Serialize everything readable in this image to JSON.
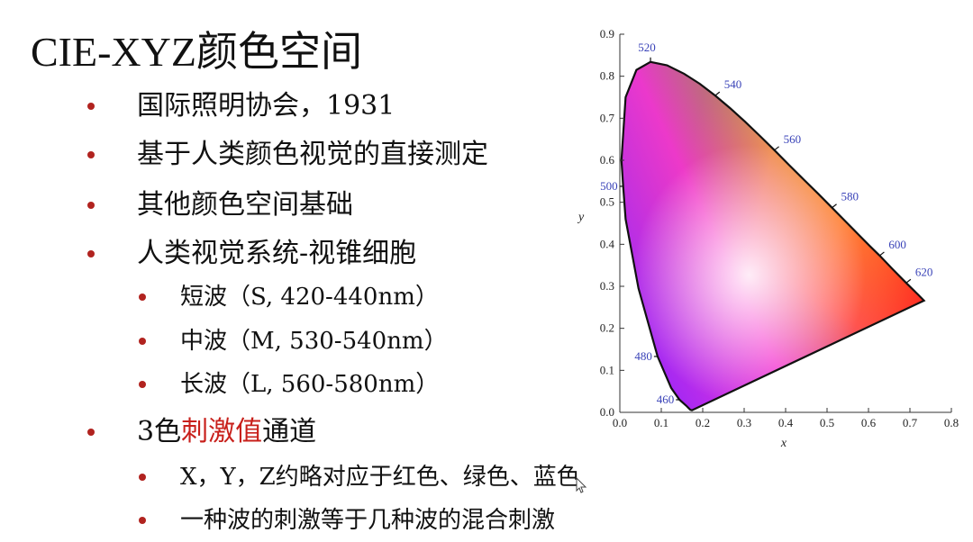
{
  "slide": {
    "title": "CIE-XYZ颜色空间",
    "bullets": [
      {
        "text": "国际照明协会，1931"
      },
      {
        "text": "基于人类颜色视觉的直接测定"
      },
      {
        "text": "其他颜色空间基础"
      },
      {
        "text": "人类视觉系统-视锥细胞"
      },
      {
        "text": "短波（S, 420-440nm）",
        "level": 2
      },
      {
        "text": "中波（M, 530-540nm）",
        "level": 2
      },
      {
        "text": "长波（L, 560-580nm）",
        "level": 2
      },
      {
        "prefix": "3色",
        "highlight": "刺激值",
        "suffix": "通道"
      },
      {
        "text": "X，Y，Z约略对应于红色、绿色、蓝色",
        "level": 2
      },
      {
        "text": "一种波的刺激等于几种波的混合刺激",
        "level": 2
      }
    ]
  },
  "chart_data": {
    "type": "scatter",
    "title": "",
    "xlabel": "x",
    "ylabel": "y",
    "xlim": [
      0.0,
      0.8
    ],
    "ylim": [
      0.0,
      0.9
    ],
    "xticks": [
      "0.0",
      "0.1",
      "0.2",
      "0.3",
      "0.4",
      "0.5",
      "0.6",
      "0.7",
      "0.8"
    ],
    "yticks": [
      "0.0",
      "0.1",
      "0.2",
      "0.3",
      "0.4",
      "0.5",
      "0.6",
      "0.7",
      "0.8",
      "0.9"
    ],
    "grid": false,
    "wavelength_labels": [
      {
        "label": "460",
        "x": 0.144,
        "y": 0.03
      },
      {
        "label": "480",
        "x": 0.091,
        "y": 0.133
      },
      {
        "label": "500",
        "x": 0.008,
        "y": 0.538
      },
      {
        "label": "520",
        "x": 0.074,
        "y": 0.834
      },
      {
        "label": "540",
        "x": 0.23,
        "y": 0.754
      },
      {
        "label": "560",
        "x": 0.373,
        "y": 0.624
      },
      {
        "label": "580",
        "x": 0.512,
        "y": 0.487
      },
      {
        "label": "600",
        "x": 0.627,
        "y": 0.373
      },
      {
        "label": "620",
        "x": 0.691,
        "y": 0.308
      }
    ],
    "locus": [
      [
        0.174,
        0.005
      ],
      [
        0.17,
        0.006
      ],
      [
        0.16,
        0.016
      ],
      [
        0.144,
        0.03
      ],
      [
        0.124,
        0.058
      ],
      [
        0.091,
        0.133
      ],
      [
        0.045,
        0.295
      ],
      [
        0.014,
        0.46
      ],
      [
        0.008,
        0.538
      ],
      [
        0.004,
        0.6
      ],
      [
        0.014,
        0.75
      ],
      [
        0.04,
        0.815
      ],
      [
        0.074,
        0.834
      ],
      [
        0.114,
        0.826
      ],
      [
        0.155,
        0.806
      ],
      [
        0.193,
        0.782
      ],
      [
        0.23,
        0.754
      ],
      [
        0.266,
        0.724
      ],
      [
        0.302,
        0.692
      ],
      [
        0.337,
        0.659
      ],
      [
        0.373,
        0.624
      ],
      [
        0.408,
        0.589
      ],
      [
        0.444,
        0.554
      ],
      [
        0.479,
        0.52
      ],
      [
        0.512,
        0.487
      ],
      [
        0.546,
        0.453
      ],
      [
        0.575,
        0.424
      ],
      [
        0.603,
        0.396
      ],
      [
        0.627,
        0.373
      ],
      [
        0.658,
        0.341
      ],
      [
        0.691,
        0.308
      ],
      [
        0.719,
        0.281
      ],
      [
        0.734,
        0.266
      ]
    ]
  }
}
